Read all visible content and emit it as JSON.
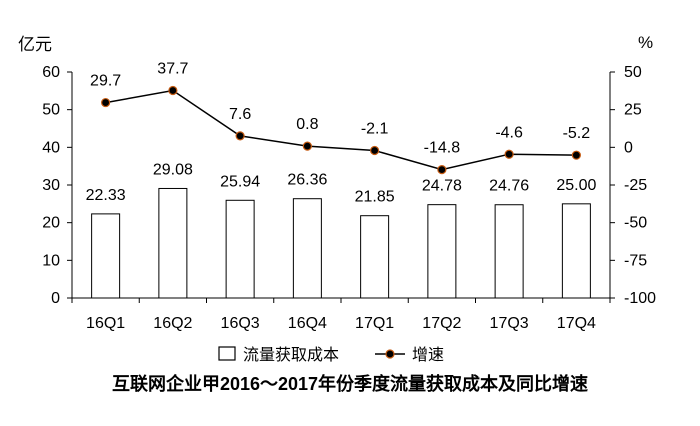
{
  "chart_data": {
    "type": "bar+line",
    "title": "互联网企业甲2016～2017年份季度流量获取成本及同比增速",
    "y_left_label": "亿元",
    "y_right_label": "%",
    "y_left_lim": [
      0,
      60
    ],
    "y_right_lim": [
      -100,
      50
    ],
    "y_left_ticks": [
      "0",
      "10",
      "20",
      "30",
      "40",
      "50",
      "60"
    ],
    "y_right_ticks": [
      "-100",
      "-75",
      "-50",
      "-25",
      "0",
      "25",
      "50"
    ],
    "categories": [
      "16Q1",
      "16Q2",
      "16Q3",
      "16Q4",
      "17Q1",
      "17Q2",
      "17Q3",
      "17Q4"
    ],
    "series": [
      {
        "name": "流量获取成本",
        "type": "bar",
        "axis": "left",
        "values": [
          22.33,
          29.08,
          25.94,
          26.36,
          21.85,
          24.78,
          24.76,
          25.0
        ],
        "labels": [
          "22.33",
          "29.08",
          "25.94",
          "26.36",
          "21.85",
          "24.78",
          "24.76",
          "25.00"
        ]
      },
      {
        "name": "增速",
        "type": "line",
        "axis": "right",
        "values": [
          29.7,
          37.7,
          7.6,
          0.8,
          -2.1,
          -14.8,
          -4.6,
          -5.2
        ],
        "labels": [
          "29.7",
          "37.7",
          "7.6",
          "0.8",
          "-2.1",
          "-14.8",
          "-4.6",
          "-5.2"
        ]
      }
    ],
    "legend_position": "bottom",
    "grid": false,
    "colors": {
      "bar_fill": "#ffffff",
      "bar_stroke": "#000000",
      "line": "#000000",
      "marker": "#000000",
      "marker_edge": "#c55a11"
    }
  }
}
